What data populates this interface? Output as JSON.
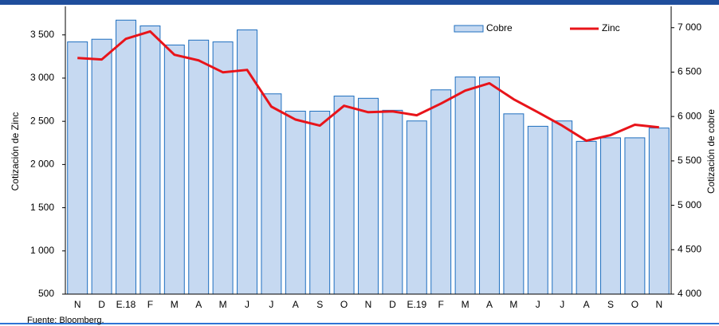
{
  "chart_data": {
    "type": "bar_line",
    "categories": [
      "N",
      "D",
      "E.18",
      "F",
      "M",
      "A",
      "M",
      "J",
      "J",
      "A",
      "S",
      "O",
      "N",
      "D",
      "E.19",
      "F",
      "M",
      "A",
      "M",
      "J",
      "J",
      "A",
      "S",
      "O",
      "N"
    ],
    "series": [
      {
        "name": "Cobre",
        "type": "bar",
        "axis": "y2",
        "color": "#c6d9f1",
        "values": [
          6840,
          6870,
          7085,
          7020,
          6805,
          6860,
          6840,
          6975,
          6255,
          6060,
          6060,
          6230,
          6205,
          6070,
          5950,
          6300,
          6445,
          6445,
          6030,
          5890,
          5950,
          5720,
          5760,
          5760,
          5870
        ]
      },
      {
        "name": "Zinc",
        "type": "line",
        "color": "#e8141a",
        "values": [
          3233,
          3215,
          3455,
          3540,
          3270,
          3205,
          3067,
          3095,
          2670,
          2520,
          2450,
          2680,
          2605,
          2615,
          2570,
          2705,
          2855,
          2940,
          2755,
          2605,
          2450,
          2275,
          2340,
          2460,
          2430
        ]
      }
    ],
    "ylabel": "Cotización de Zinc",
    "y2label": "Cotización de cobre",
    "ylim": [
      500,
      3830
    ],
    "yticks": [
      {
        "value": 500,
        "label": "500"
      },
      {
        "value": 1000,
        "label": "1 000"
      },
      {
        "value": 1500,
        "label": "1 500"
      },
      {
        "value": 2000,
        "label": "2 000"
      },
      {
        "value": 2500,
        "label": "2 500"
      },
      {
        "value": 3000,
        "label": "3 000"
      },
      {
        "value": 3500,
        "label": "3 500"
      }
    ],
    "y2lim": [
      4000,
      7240
    ],
    "y2ticks": [
      {
        "value": 4000,
        "label": "4 000"
      },
      {
        "value": 4500,
        "label": "4 500"
      },
      {
        "value": 5000,
        "label": "5 000"
      },
      {
        "value": 5500,
        "label": "5 500"
      },
      {
        "value": 6000,
        "label": "6 000"
      },
      {
        "value": 6500,
        "label": "6 500"
      },
      {
        "value": 7000,
        "label": "7 000"
      }
    ],
    "source": "Fuente: Bloomberg."
  }
}
